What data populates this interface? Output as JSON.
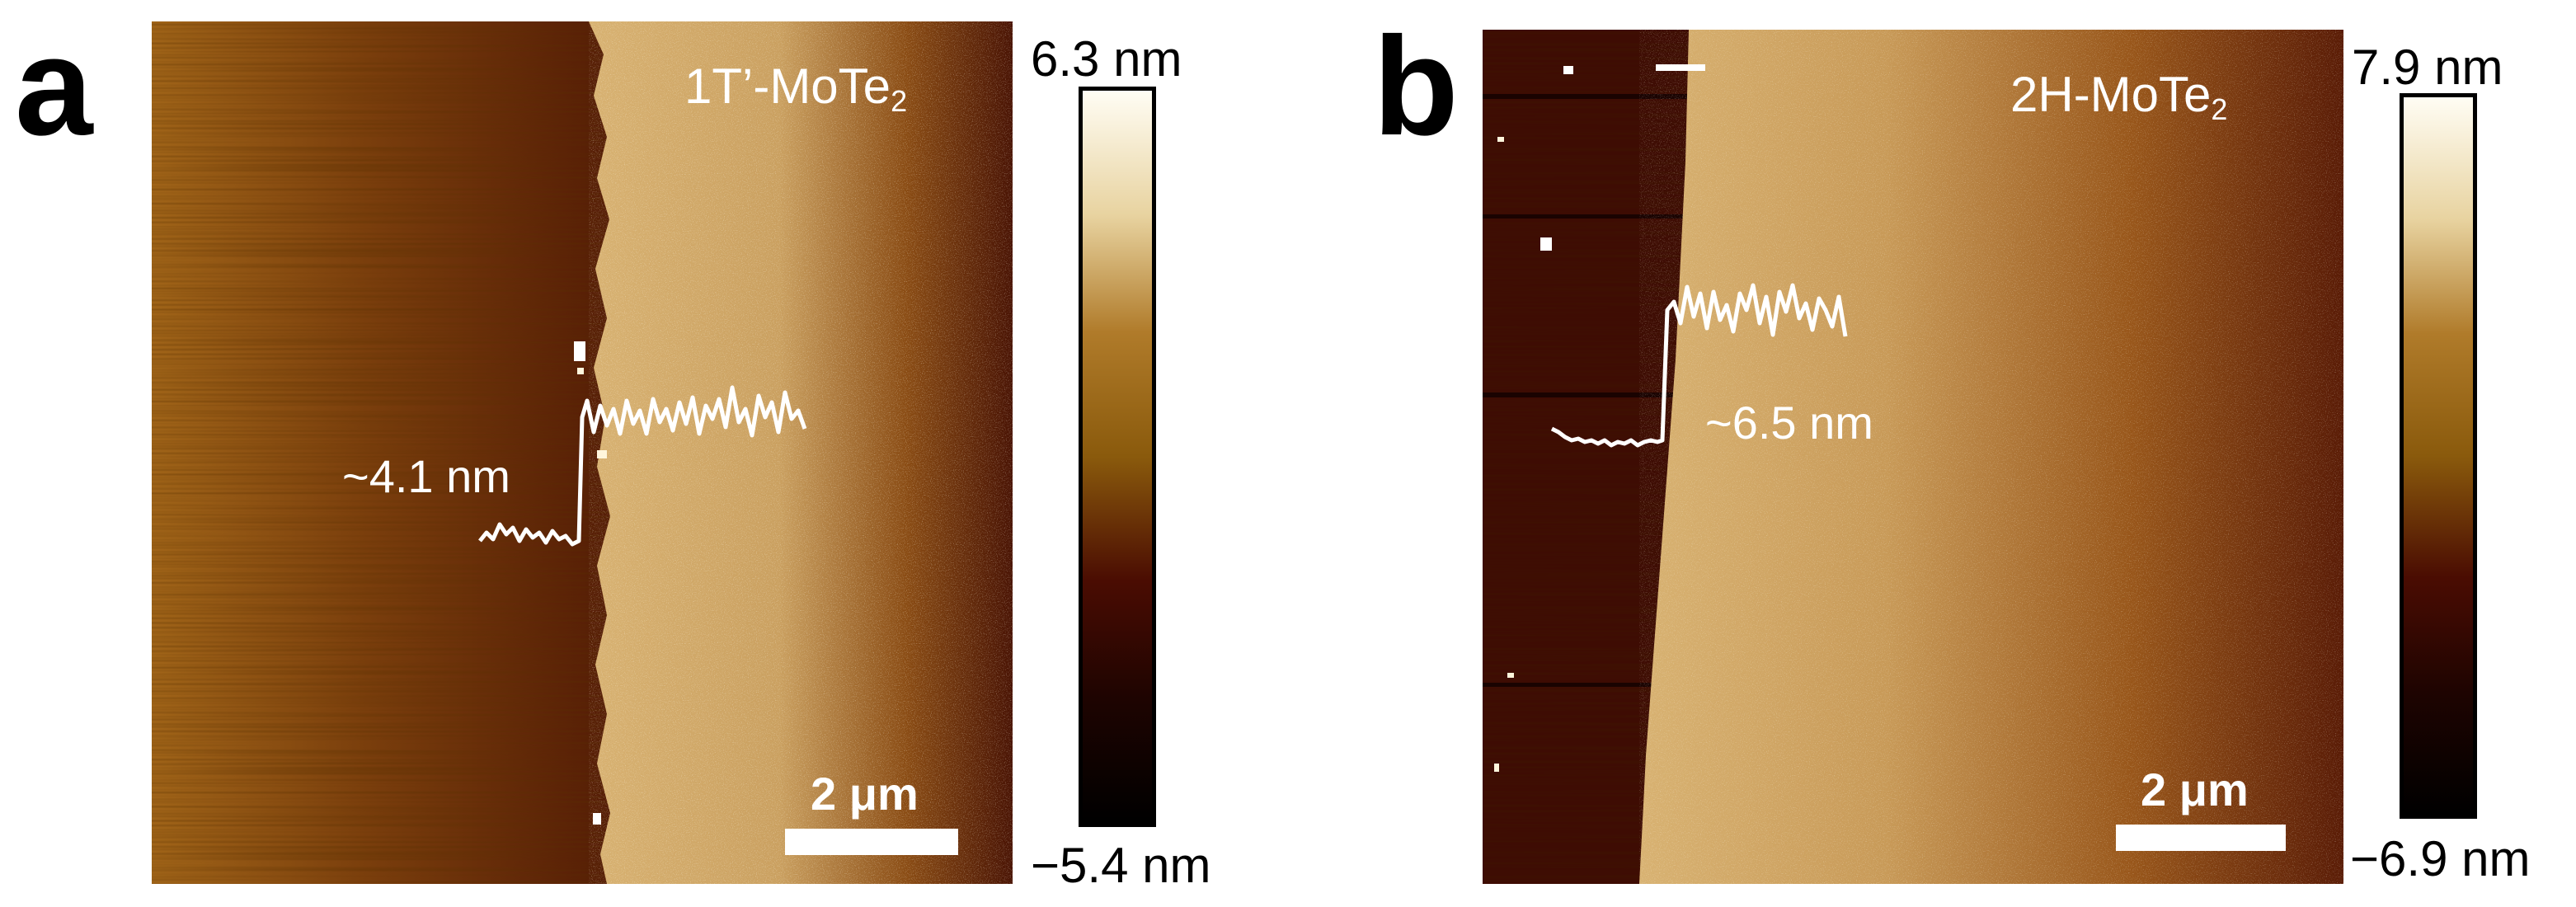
{
  "panels": [
    {
      "letter": "a",
      "material": {
        "base": "1T’-MoTe",
        "subscript": "2"
      },
      "step_height": "~4.1 nm",
      "scale_bar": "2 μm",
      "colorbar": {
        "max": "6.3 nm",
        "min": "−5.4 nm"
      }
    },
    {
      "letter": "b",
      "material": {
        "base": "2H-MoTe",
        "subscript": "2"
      },
      "step_height": "~6.5 nm",
      "scale_bar": "2 μm",
      "colorbar": {
        "max": "7.9 nm",
        "min": "−6.9 nm"
      }
    }
  ],
  "colors": {
    "afm_dark": "#3a0d02",
    "afm_mid": "#a8641a",
    "afm_bright": "#ecc98a",
    "colorbar_stops": [
      "#fffdf4",
      "#e8d3a0",
      "#b07b2a",
      "#8a5a0c",
      "#4a0c02",
      "#1e0401",
      "#000000"
    ],
    "profile_line": "#ffffff"
  }
}
